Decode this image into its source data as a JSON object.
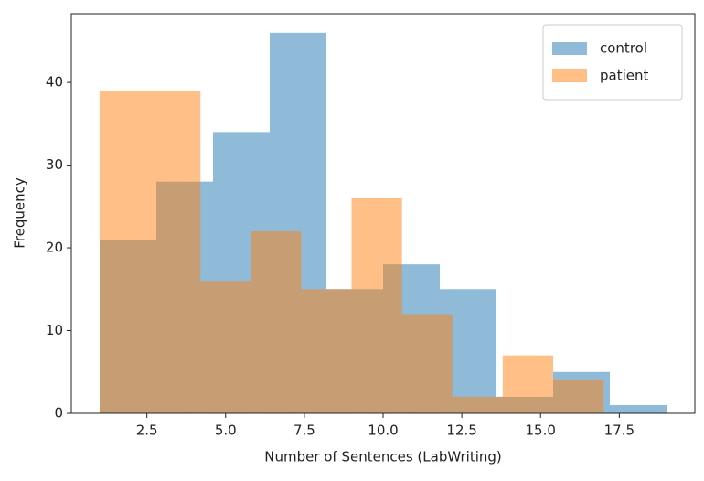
{
  "chart_data": {
    "type": "histogram",
    "xlabel": "Number of Sentences (LabWriting)",
    "ylabel": "Frequency",
    "series": [
      {
        "name": "control",
        "color": "#1f77b4",
        "bins": [
          1,
          2.8,
          4.6,
          6.4,
          8.2,
          10,
          11.8,
          13.6,
          15.4,
          17.2,
          19
        ],
        "values": [
          21,
          28,
          34,
          46,
          15,
          18,
          15,
          2,
          5,
          1
        ]
      },
      {
        "name": "patient",
        "color": "#ff7f0e",
        "bins": [
          1,
          2.6,
          4.2,
          5.8,
          7.4,
          9,
          10.6,
          12.2,
          13.8,
          15.4,
          17
        ],
        "values": [
          39,
          39,
          16,
          22,
          15,
          26,
          12,
          2,
          7,
          4
        ]
      }
    ],
    "alpha": 0.5,
    "xlim": [
      0.1,
      19.9
    ],
    "ylim": [
      0,
      48.3
    ],
    "xticks": [
      2.5,
      {
        "value": 5,
        "label": "5.0"
      },
      7.5,
      {
        "value": 10,
        "label": "10.0"
      },
      12.5,
      {
        "value": 15,
        "label": "15.0"
      },
      17.5
    ],
    "yticks": [
      0,
      10,
      20,
      30,
      40
    ],
    "legend": "upper right"
  }
}
